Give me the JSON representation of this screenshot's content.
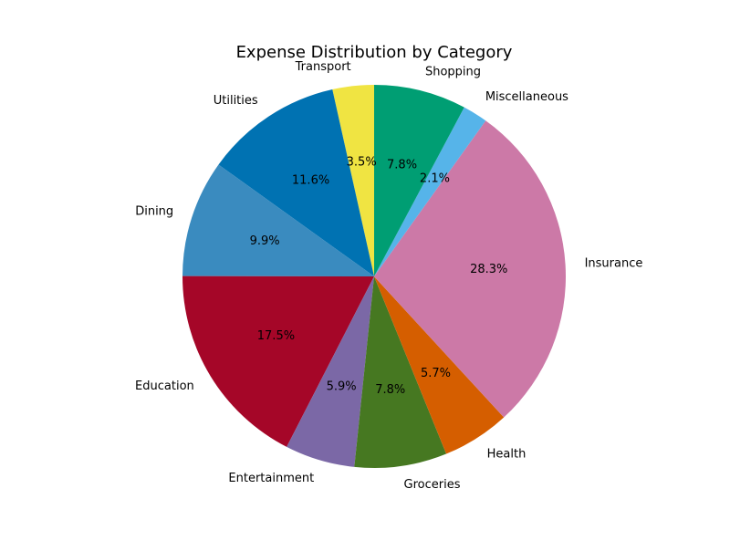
{
  "chart_data": {
    "type": "pie",
    "title": "Expense Distribution by Category",
    "start_angle_deg": 90,
    "direction": "counterclockwise",
    "slices": [
      {
        "label": "Transport",
        "value": 3.5,
        "pct_label": "3.5%",
        "color": "#f0e442"
      },
      {
        "label": "Utilities",
        "value": 11.6,
        "pct_label": "11.6%",
        "color": "#0072b2"
      },
      {
        "label": "Dining",
        "value": 9.9,
        "pct_label": "9.9%",
        "color": "#3a8bbf"
      },
      {
        "label": "Education",
        "value": 17.5,
        "pct_label": "17.5%",
        "color": "#a50628"
      },
      {
        "label": "Entertainment",
        "value": 5.9,
        "pct_label": "5.9%",
        "color": "#7b68a6"
      },
      {
        "label": "Groceries",
        "value": 7.8,
        "pct_label": "7.8%",
        "color": "#467821"
      },
      {
        "label": "Health",
        "value": 5.7,
        "pct_label": "5.7%",
        "color": "#d55e00"
      },
      {
        "label": "Insurance",
        "value": 28.3,
        "pct_label": "28.3%",
        "color": "#cc79a7"
      },
      {
        "label": "Miscellaneous",
        "value": 2.1,
        "pct_label": "2.1%",
        "color": "#56b4e9"
      },
      {
        "label": "Shopping",
        "value": 7.8,
        "pct_label": "7.8%",
        "color": "#009e73"
      }
    ]
  }
}
